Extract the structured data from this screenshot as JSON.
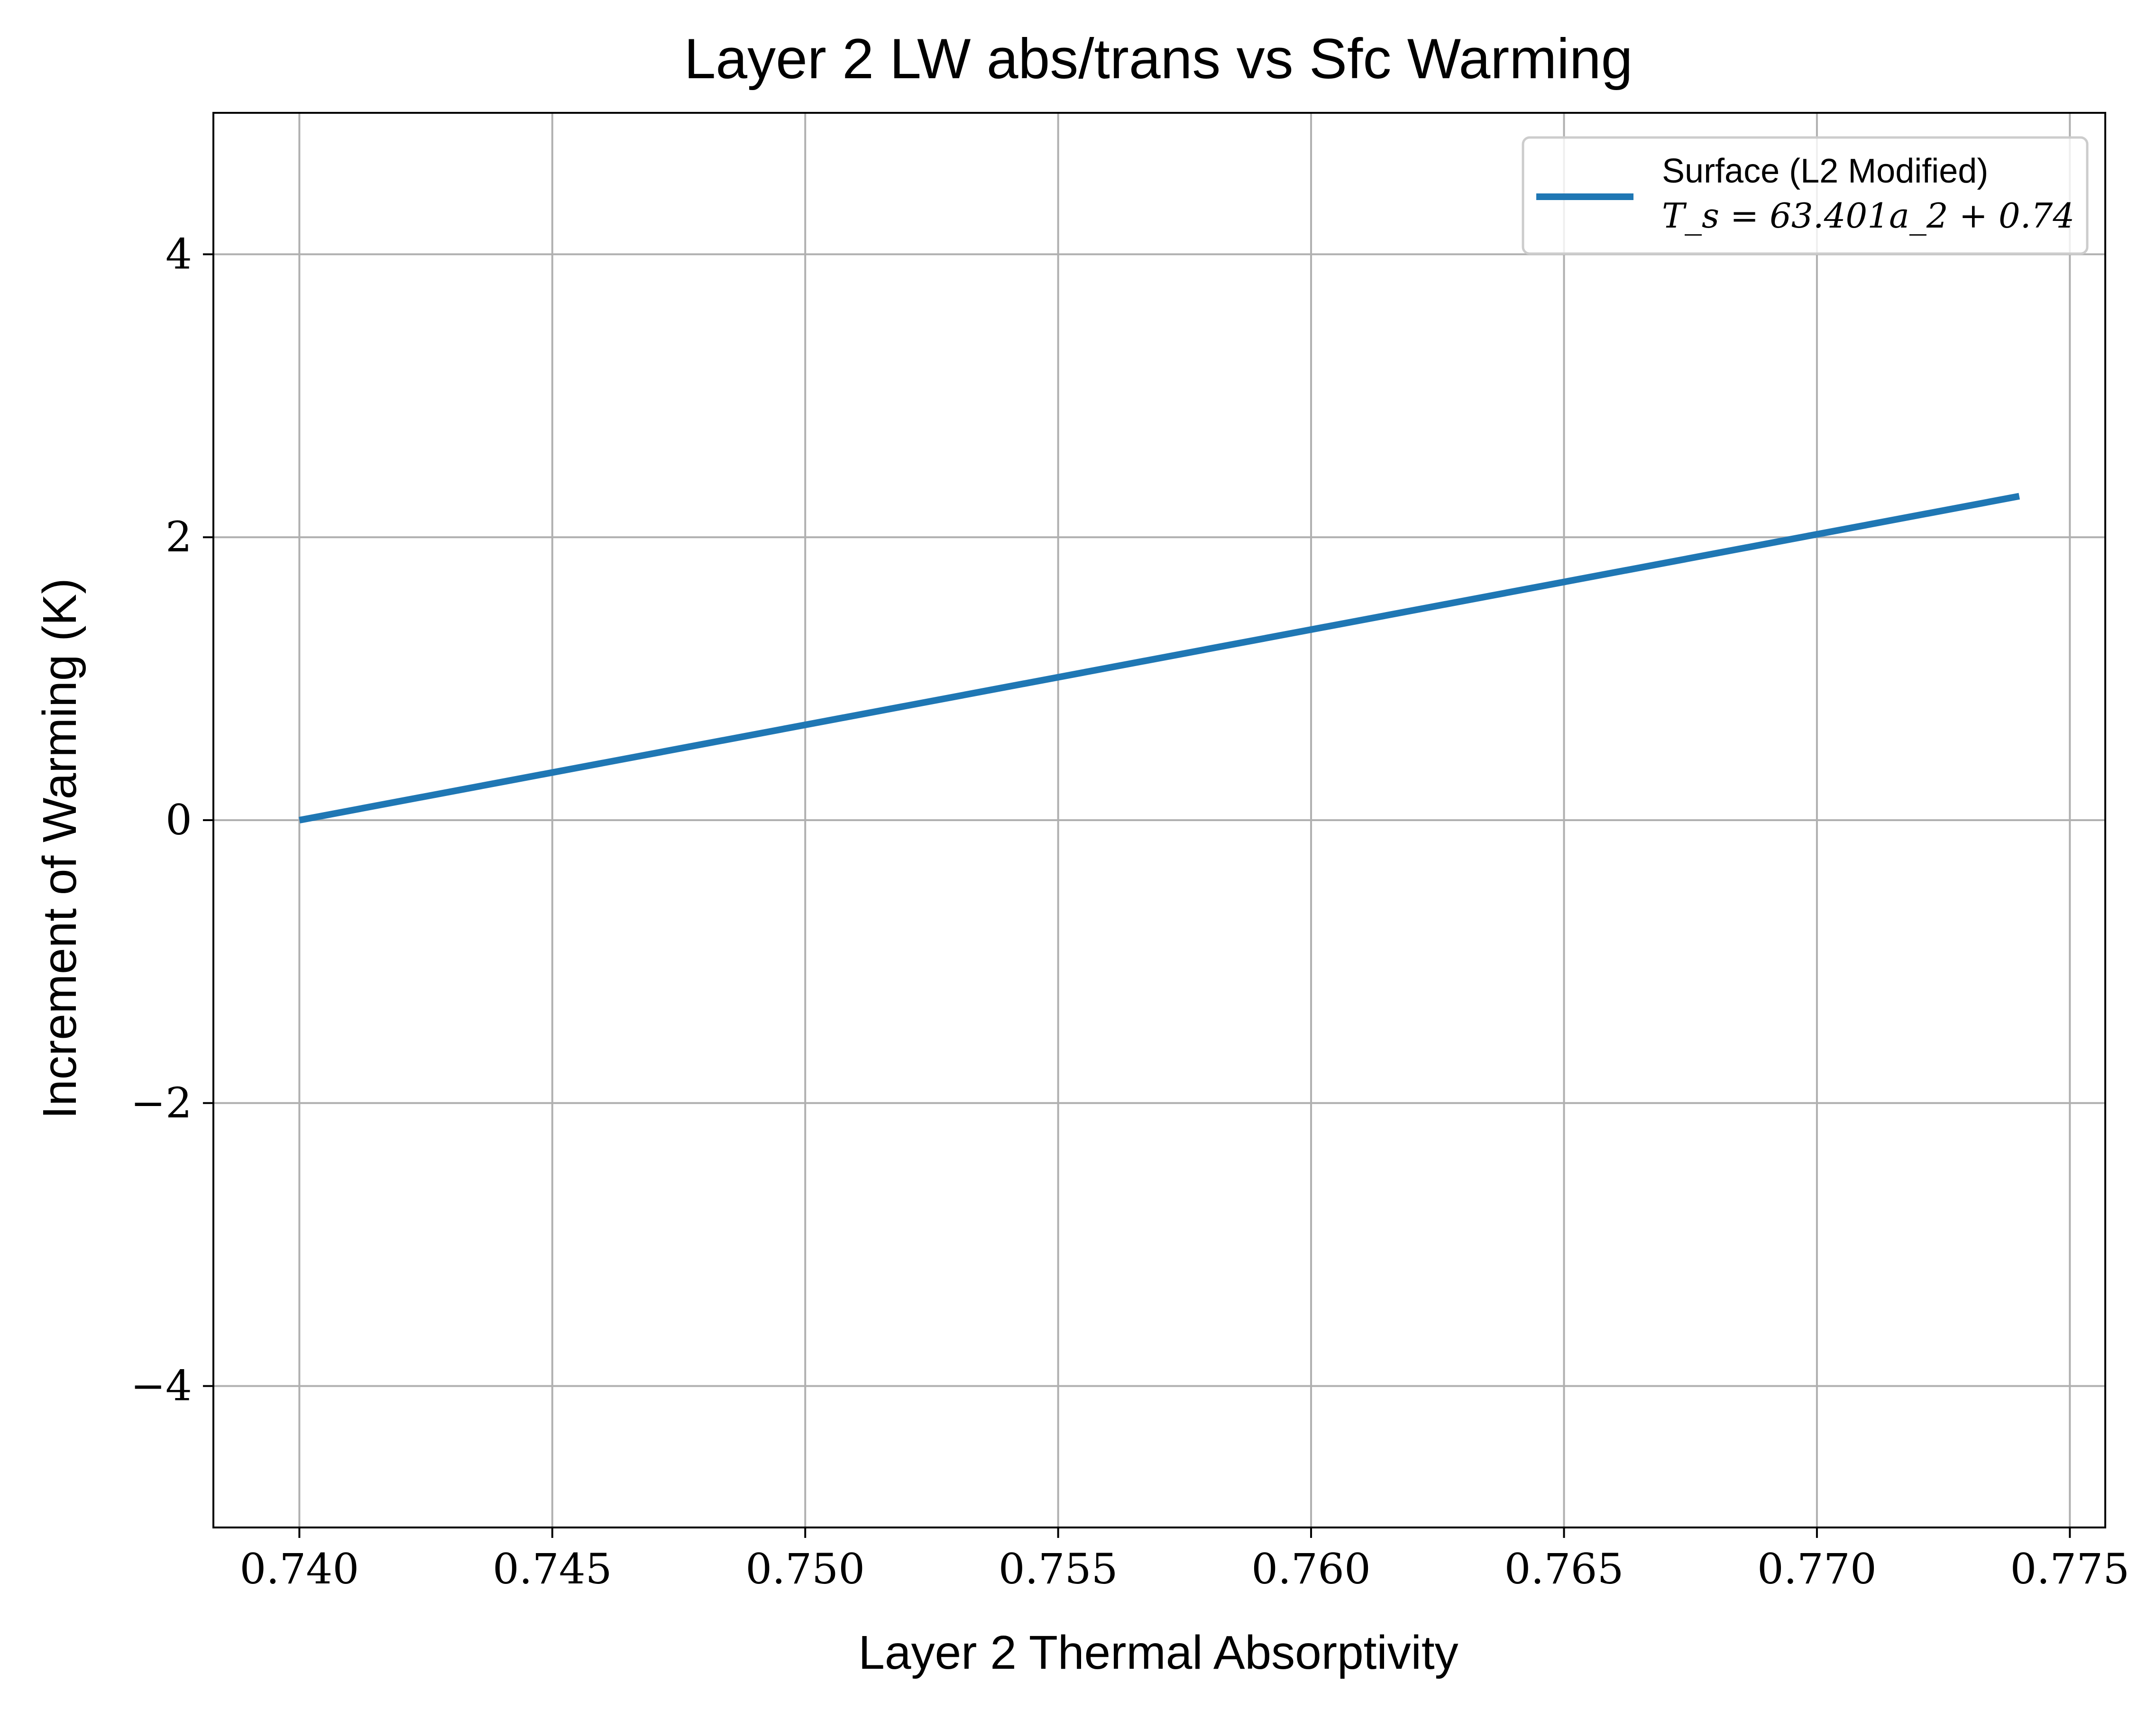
{
  "chart_data": {
    "type": "line",
    "title": "Layer 2 LW abs/trans vs Sfc Warming",
    "xlabel": "Layer 2 Thermal Absorptivity",
    "ylabel": "Increment of Warming (K)",
    "xlim": [
      0.7383,
      0.7757
    ],
    "ylim": [
      -5,
      5
    ],
    "xticks": [
      0.74,
      0.745,
      0.75,
      0.755,
      0.76,
      0.765,
      0.77,
      0.775
    ],
    "xtick_labels": [
      "0.740",
      "0.745",
      "0.750",
      "0.755",
      "0.760",
      "0.765",
      "0.770",
      "0.775"
    ],
    "yticks": [
      -4,
      -2,
      0,
      2,
      4
    ],
    "ytick_labels": [
      "−4",
      "−2",
      "0",
      "2",
      "4"
    ],
    "grid": true,
    "legend_position": "top-right",
    "series": [
      {
        "name": "Surface (L2 Modified)",
        "equation": "T_s = 63.401a_2 + 0.74",
        "color": "#1f77b4",
        "x": [
          0.74,
          0.774
        ],
        "y": [
          0.0,
          2.29
        ]
      }
    ]
  }
}
